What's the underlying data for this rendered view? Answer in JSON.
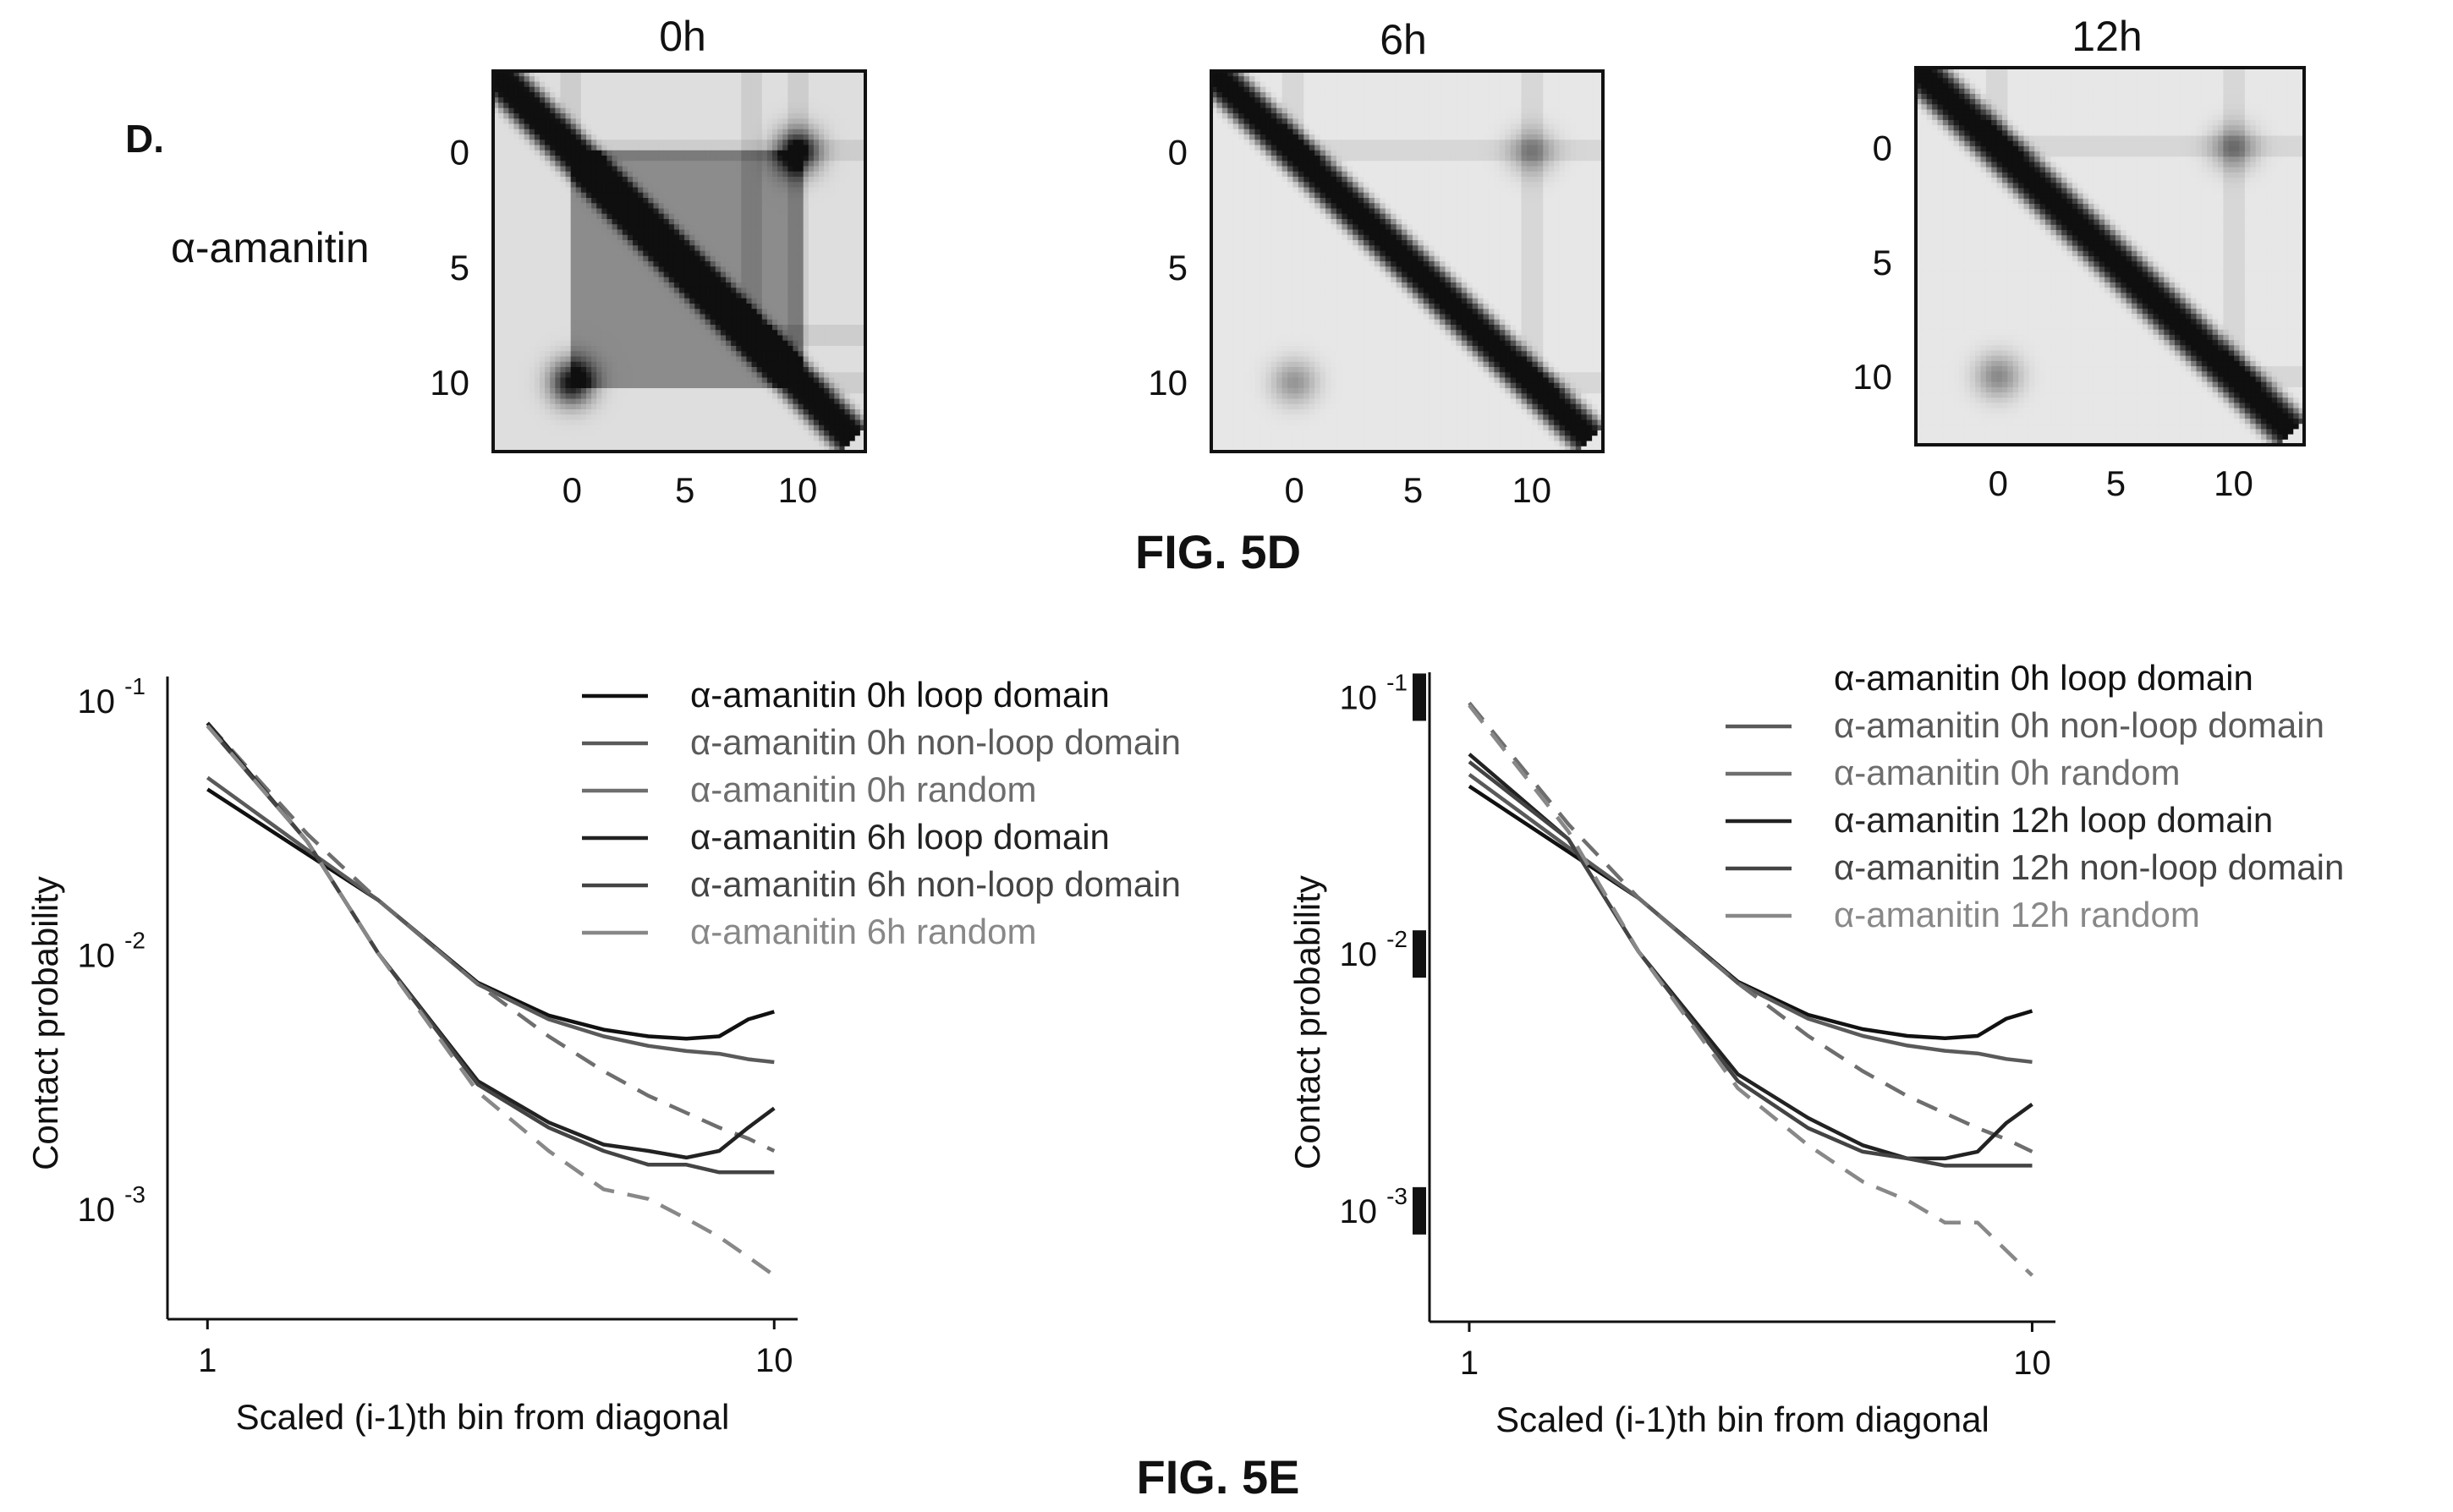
{
  "figure_5d": {
    "panel_letter": "D.",
    "row_label": "α-amanitin",
    "caption": "FIG. 5D",
    "maps": [
      {
        "title": "0h",
        "x_ticks": [
          "0",
          "5",
          "10"
        ],
        "y_ticks": [
          "0",
          "5",
          "10"
        ]
      },
      {
        "title": "6h",
        "x_ticks": [
          "0",
          "5",
          "10"
        ],
        "y_ticks": [
          "0",
          "5",
          "10"
        ]
      },
      {
        "title": "12h",
        "x_ticks": [
          "0",
          "5",
          "10"
        ],
        "y_ticks": [
          "0",
          "5",
          "10"
        ]
      }
    ]
  },
  "figure_5e": {
    "caption": "FIG. 5E"
  },
  "chart_data": [
    {
      "type": "heatmap",
      "title": "0h",
      "row_label": "α-amanitin",
      "x_ticks": [
        0,
        5,
        10
      ],
      "y_ticks": [
        0,
        5,
        10
      ],
      "domain": [
        -3.5,
        13
      ],
      "features": {
        "diagonal": {
          "start": -3.5,
          "end": 12.5,
          "width": 1.6,
          "intensity": 0.95
        },
        "domain_box": {
          "start": 0,
          "end": 10.2,
          "intensity": 0.35
        },
        "loop_corner": {
          "a": 0,
          "b": 10,
          "intensity": 0.9
        },
        "stripes": [
          0,
          8,
          10
        ],
        "background_intensity": 0.12
      }
    },
    {
      "type": "heatmap",
      "title": "6h",
      "x_ticks": [
        0,
        5,
        10
      ],
      "y_ticks": [
        0,
        5,
        10
      ],
      "domain": [
        -3.5,
        13
      ],
      "features": {
        "diagonal": {
          "start": -3.5,
          "end": 12.5,
          "width": 1.5,
          "intensity": 0.95
        },
        "domain_box": null,
        "loop_corner": {
          "a": 0,
          "b": 10,
          "intensity": 0.35
        },
        "stripes": [
          0,
          10
        ],
        "background_intensity": 0.08
      }
    },
    {
      "type": "heatmap",
      "title": "12h",
      "x_ticks": [
        0,
        5,
        10
      ],
      "y_ticks": [
        0,
        5,
        10
      ],
      "domain": [
        -3.5,
        13
      ],
      "features": {
        "diagonal": {
          "start": -3.5,
          "end": 12.5,
          "width": 1.6,
          "intensity": 0.95
        },
        "domain_box": null,
        "loop_corner": {
          "a": 0,
          "b": 10,
          "intensity": 0.4
        },
        "stripes": [
          0,
          10
        ],
        "background_intensity": 0.08
      }
    },
    {
      "type": "line",
      "xlabel": "Scaled (i-1)th bin from diagonal",
      "ylabel": "Contact probability",
      "xscale": "log",
      "yscale": "log",
      "xlim": [
        0.85,
        11
      ],
      "ylim": [
        0.00037,
        0.125
      ],
      "x_ticks": [
        {
          "value": 1,
          "label": "1"
        },
        {
          "value": 10,
          "label": "10"
        }
      ],
      "y_ticks": [
        {
          "value": 0.1,
          "base": "10",
          "exp": "-1"
        },
        {
          "value": 0.01,
          "base": "10",
          "exp": "-2"
        },
        {
          "value": 0.001,
          "base": "10",
          "exp": "-3"
        }
      ],
      "y_tick_blocks": false,
      "legend_position": "top-right",
      "x": [
        1,
        1.5,
        2,
        3,
        4,
        5,
        6,
        7,
        8,
        9,
        10
      ],
      "series": [
        {
          "name": "α-amanitin 0h loop domain",
          "color": "#111111",
          "dash": "solid",
          "values": [
            0.045,
            0.025,
            0.0165,
            0.0078,
            0.0058,
            0.0051,
            0.0048,
            0.0047,
            0.0048,
            0.0056,
            0.006
          ]
        },
        {
          "name": "α-amanitin 0h non-loop domain",
          "color": "#5a5a5a",
          "dash": "solid",
          "values": [
            0.05,
            0.026,
            0.0165,
            0.0077,
            0.0056,
            0.0048,
            0.0044,
            0.0042,
            0.0041,
            0.0039,
            0.0038
          ]
        },
        {
          "name": "α-amanitin 0h random",
          "color": "#6e6e6e",
          "dash": "dashed",
          "values": [
            0.082,
            0.03,
            0.0165,
            0.0077,
            0.0048,
            0.0035,
            0.0028,
            0.0024,
            0.0021,
            0.0019,
            0.0017
          ]
        },
        {
          "name": "α-amanitin 6h loop domain",
          "color": "#222222",
          "dash": "solid",
          "values": [
            0.082,
            0.028,
            0.0102,
            0.0032,
            0.0022,
            0.0018,
            0.0017,
            0.0016,
            0.0017,
            0.0021,
            0.0025
          ]
        },
        {
          "name": "α-amanitin 6h non-loop domain",
          "color": "#444444",
          "dash": "solid",
          "values": [
            0.08,
            0.028,
            0.0102,
            0.0031,
            0.0021,
            0.0017,
            0.0015,
            0.0015,
            0.0014,
            0.0014,
            0.0014
          ]
        },
        {
          "name": "α-amanitin 6h random",
          "color": "#888888",
          "dash": "dashed",
          "values": [
            0.08,
            0.028,
            0.0102,
            0.0029,
            0.0017,
            0.0012,
            0.0011,
            0.00092,
            0.00078,
            0.00065,
            0.00055
          ]
        }
      ]
    },
    {
      "type": "line",
      "xlabel": "Scaled (i-1)th bin from diagonal",
      "ylabel": "Contact probability",
      "xscale": "log",
      "yscale": "log",
      "xlim": [
        0.85,
        11
      ],
      "ylim": [
        0.00037,
        0.125
      ],
      "x_ticks": [
        {
          "value": 1,
          "label": "1"
        },
        {
          "value": 10,
          "label": "10"
        }
      ],
      "y_ticks": [
        {
          "value": 0.1,
          "base": "10",
          "exp": "-1"
        },
        {
          "value": 0.01,
          "base": "10",
          "exp": "-2"
        },
        {
          "value": 0.001,
          "base": "10",
          "exp": "-3"
        }
      ],
      "y_tick_blocks": true,
      "legend_position": "top-right",
      "x": [
        1,
        1.5,
        2,
        3,
        4,
        5,
        6,
        7,
        8,
        9,
        10
      ],
      "series": [
        {
          "name": "α-amanitin 0h loop domain",
          "color": "#111111",
          "dash": "none",
          "swatch": false,
          "values": [
            0.045,
            0.025,
            0.0165,
            0.0078,
            0.0058,
            0.0051,
            0.0048,
            0.0047,
            0.0048,
            0.0056,
            0.006
          ]
        },
        {
          "name": "α-amanitin 0h non-loop domain",
          "color": "#5a5a5a",
          "dash": "solid",
          "values": [
            0.05,
            0.026,
            0.0165,
            0.0077,
            0.0056,
            0.0048,
            0.0044,
            0.0042,
            0.0041,
            0.0039,
            0.0038
          ]
        },
        {
          "name": "α-amanitin 0h random",
          "color": "#6e6e6e",
          "dash": "dashed",
          "values": [
            0.095,
            0.032,
            0.0165,
            0.0077,
            0.0048,
            0.0035,
            0.0028,
            0.0024,
            0.0021,
            0.0019,
            0.0017
          ]
        },
        {
          "name": "α-amanitin 12h loop domain",
          "color": "#222222",
          "dash": "solid",
          "values": [
            0.06,
            0.028,
            0.0102,
            0.0034,
            0.0023,
            0.0018,
            0.0016,
            0.0016,
            0.0017,
            0.0022,
            0.0026
          ]
        },
        {
          "name": "α-amanitin 12h non-loop domain",
          "color": "#444444",
          "dash": "solid",
          "values": [
            0.056,
            0.028,
            0.0102,
            0.0032,
            0.0021,
            0.0017,
            0.0016,
            0.0015,
            0.0015,
            0.0015,
            0.0015
          ]
        },
        {
          "name": "α-amanitin 12h random",
          "color": "#888888",
          "dash": "dashed",
          "values": [
            0.093,
            0.03,
            0.0102,
            0.003,
            0.0018,
            0.0013,
            0.0011,
            0.0009,
            0.0009,
            0.0007,
            0.00056
          ]
        }
      ]
    }
  ]
}
